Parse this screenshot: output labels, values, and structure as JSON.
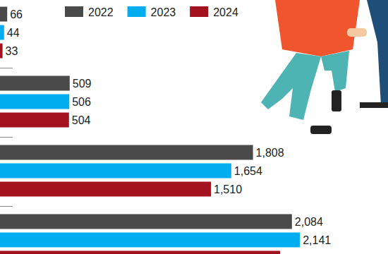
{
  "chart_data": {
    "type": "bar",
    "orientation": "horizontal",
    "data_labels": true,
    "tick_labels": false,
    "grid": false,
    "legend": "top",
    "categories": [
      null,
      null,
      null,
      null
    ],
    "xlim": [
      0,
      2700
    ],
    "series": [
      {
        "name": "2022",
        "color": "#4a4a4a",
        "values": [
          66,
          509,
          1808,
          2084
        ],
        "value_labels": [
          "66",
          "509",
          "1,808",
          "2,084"
        ]
      },
      {
        "name": "2023",
        "color": "#00adef",
        "values": [
          44,
          506,
          1654,
          2141
        ],
        "value_labels": [
          "44",
          "506",
          "1,654",
          "2,141"
        ]
      },
      {
        "name": "2024",
        "color": "#a3121f",
        "values": [
          33,
          504,
          1510,
          2000
        ],
        "value_labels": [
          "33",
          "504",
          "1,510",
          null
        ]
      }
    ]
  }
}
